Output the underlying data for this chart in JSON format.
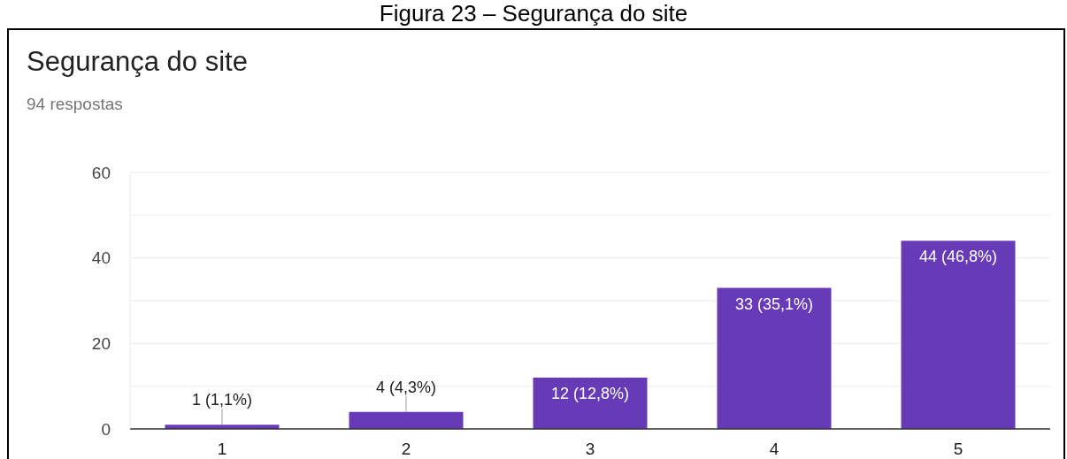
{
  "chart_data": {
    "type": "bar",
    "title": "Segurança do site",
    "subtitle": "94 respostas",
    "annotations": [
      "Figura 23 – Segurança do site"
    ],
    "categories": [
      "1",
      "2",
      "3",
      "4",
      "5"
    ],
    "values": [
      1,
      4,
      12,
      33,
      44
    ],
    "value_labels": [
      "1 (1,1%)",
      "4 (4,3%)",
      "12 (12,8%)",
      "33 (35,1%)",
      "44 (46,8%)"
    ],
    "color": "#673ab7",
    "ylim": [
      0,
      60
    ],
    "yticks": [
      0,
      {
        "value": 10,
        "label": null
      },
      20,
      {
        "value": 30,
        "label": null
      },
      40,
      {
        "value": 50,
        "label": null
      },
      60
    ],
    "grid": "y"
  }
}
